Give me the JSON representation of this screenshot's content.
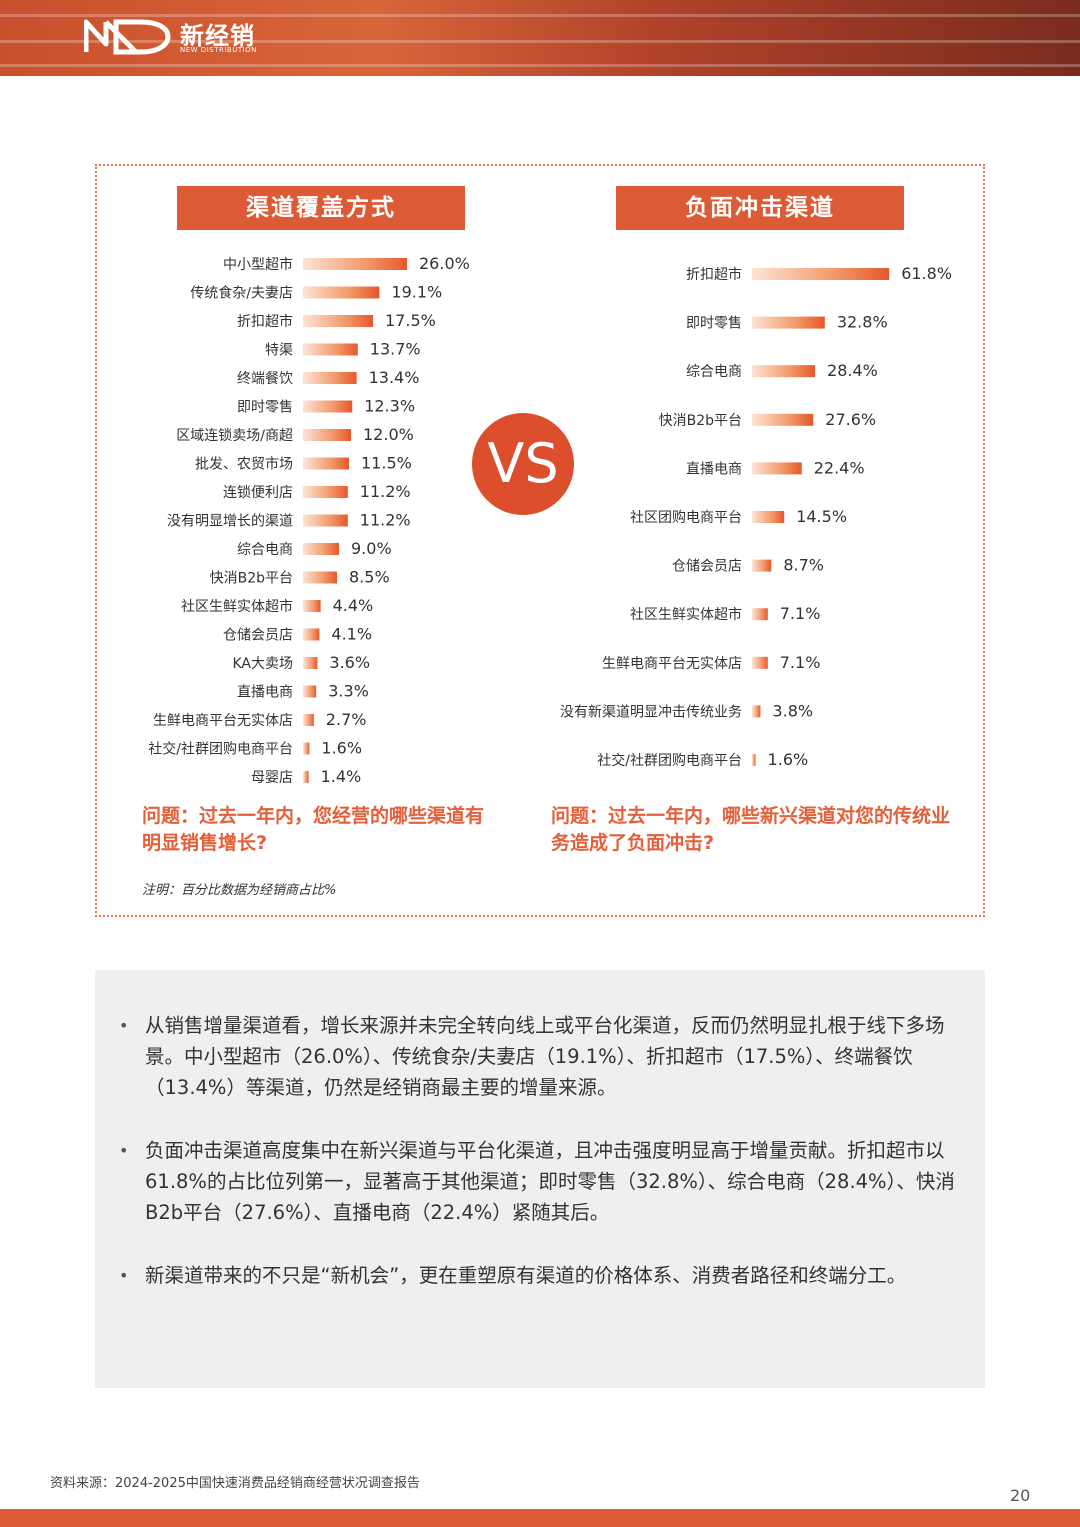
{
  "header": {
    "brand": "新经销",
    "brand_sub": "NEW DISTRIBUTION",
    "accent": "#dc5a35"
  },
  "left_title": "渠道覆盖方式",
  "right_title": "负面冲击渠道",
  "vs_label": "VS",
  "left_question": "问题：过去一年内，您经营的哪些渠道有明显销售增长?",
  "right_question": "问题：过去一年内，哪些新兴渠道对您的传统业务造成了负面冲击?",
  "note": "注明：百分比数据为经销商占比%",
  "chart_data": [
    {
      "type": "bar",
      "orientation": "horizontal",
      "title": "渠道覆盖方式",
      "unit": "%",
      "categories": [
        "中小型超市",
        "传统食杂/夫妻店",
        "折扣超市",
        "特渠",
        "终端餐饮",
        "即时零售",
        "区域连锁卖场/商超",
        "批发、农贸市场",
        "连锁便利店",
        "没有明显增长的渠道",
        "综合电商",
        "快消B2b平台",
        "社区生鲜实体超市",
        "仓储会员店",
        "KA大卖场",
        "直播电商",
        "生鲜电商平台无实体店",
        "社交/社群团购电商平台",
        "母婴店"
      ],
      "values": [
        26.0,
        19.1,
        17.5,
        13.7,
        13.4,
        12.3,
        12.0,
        11.5,
        11.2,
        11.2,
        9.0,
        8.5,
        4.4,
        4.1,
        3.6,
        3.3,
        2.7,
        1.6,
        1.4
      ],
      "value_labels": [
        "26.0%",
        "19.1%",
        "17.5%",
        "13.7%",
        "13.4%",
        "12.3%",
        "12.0%",
        "11.5%",
        "11.2%",
        "11.2%",
        "9.0%",
        "8.5%",
        "4.4%",
        "4.1%",
        "3.6%",
        "3.3%",
        "2.7%",
        "1.6%",
        "1.4%"
      ],
      "bar_color": "#e9662f"
    },
    {
      "type": "bar",
      "orientation": "horizontal",
      "title": "负面冲击渠道",
      "unit": "%",
      "categories": [
        "折扣超市",
        "即时零售",
        "综合电商",
        "快消B2b平台",
        "直播电商",
        "社区团购电商平台",
        "仓储会员店",
        "社区生鲜实体超市",
        "生鲜电商平台无实体店",
        "没有新渠道明显冲击传统业务",
        "社交/社群团购电商平台"
      ],
      "values": [
        61.8,
        32.8,
        28.4,
        27.6,
        22.4,
        14.5,
        8.7,
        7.1,
        7.1,
        3.8,
        1.6
      ],
      "value_labels": [
        "61.8%",
        "32.8%",
        "28.4%",
        "27.6%",
        "22.4%",
        "14.5%",
        "8.7%",
        "7.1%",
        "7.1%",
        "3.8%",
        "1.6%"
      ],
      "bar_color": "#e9662f"
    }
  ],
  "summary": {
    "points": [
      "从销售增量渠道看，增长来源并未完全转向线上或平台化渠道，反而仍然明显扎根于线下多场景。中小型超市（26.0%）、传统食杂/夫妻店（19.1%）、折扣超市（17.5%）、终端餐饮（13.4%）等渠道，仍然是经销商最主要的增量来源。",
      "负面冲击渠道高度集中在新兴渠道与平台化渠道，且冲击强度明显高于增量贡献。折扣超市以61.8%的占比位列第一，显著高于其他渠道；即时零售（32.8%）、综合电商（28.4%）、快消B2b平台（27.6%）、直播电商（22.4%）紧随其后。",
      "新渠道带来的不只是“新机会”，更在重塑原有渠道的价格体系、消费者路径和终端分工。"
    ]
  },
  "source": "资料来源：2024-2025中国快速消费品经销商经营状况调查报告",
  "page_number": "20"
}
